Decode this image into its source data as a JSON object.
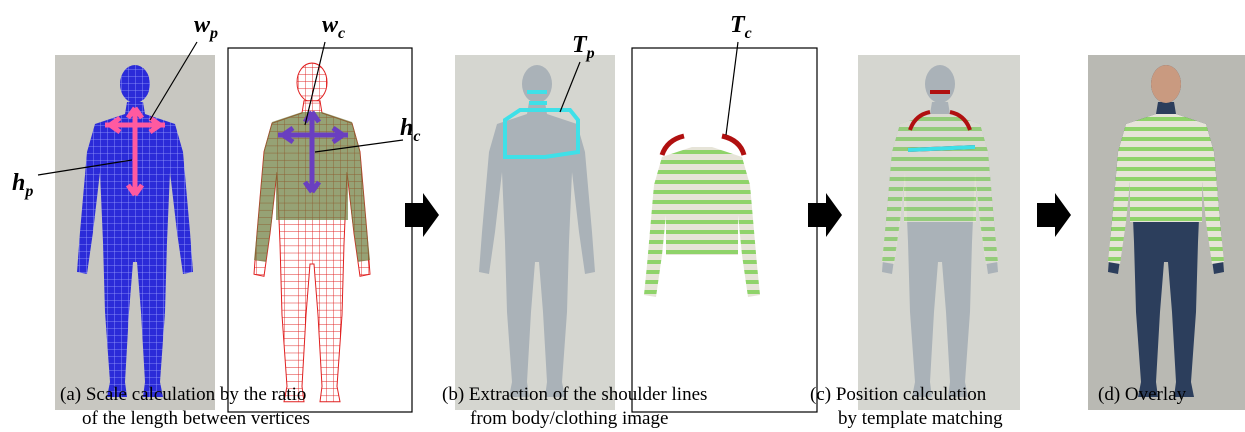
{
  "labels": [
    {
      "base": "w",
      "sub": "p"
    },
    {
      "base": "w",
      "sub": "c"
    },
    {
      "base": "h",
      "sub": "p"
    },
    {
      "base": "h",
      "sub": "c"
    },
    {
      "base": "T",
      "sub": "p"
    },
    {
      "base": "T",
      "sub": "c"
    }
  ],
  "captions": [
    [
      "(a) Scale calculation by the ratio",
      "of the length between vertices"
    ],
    [
      "(b) Extraction of the shoulder lines",
      "from body/clothing image"
    ],
    [
      "(c) Position calculation",
      "by template matching"
    ],
    [
      "(d) Overlay"
    ]
  ]
}
